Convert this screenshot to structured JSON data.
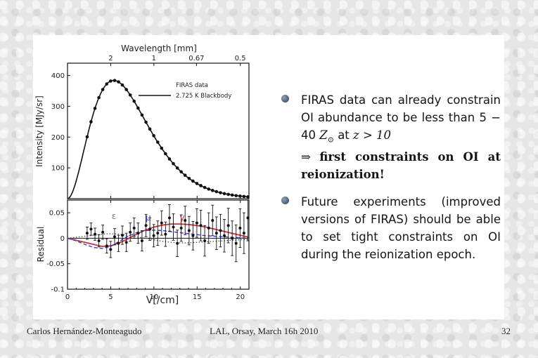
{
  "footer": {
    "author": "Carlos Hernández-Monteagudo",
    "venue": "LAL, Orsay, March 16h 2010",
    "page": "32"
  },
  "bullets": [
    {
      "id": "firas-constraint",
      "line1": "FIRAS data can already constrain OI abundance to be less than 5 − 40",
      "z_sym": "Z",
      "z_sub": "⊙",
      "at": "at",
      "cond": "z > 10",
      "arrow": "⇒",
      "bold": "first constraints on OI at reionization!"
    },
    {
      "id": "future-experiments",
      "text": "Future experiments (improved versions of FIRAS) should be able to set tight constraints on OI during the reionization epoch."
    }
  ],
  "chart_data": [
    {
      "type": "scatter",
      "panel": "top",
      "xlabel": "V[/cm]",
      "ylabel": "Intensity [MJy/sr]",
      "top_axis_label": "Wavelength [mm]",
      "top_axis_ticks": [
        {
          "label": "2",
          "nu": 5.0
        },
        {
          "label": "1",
          "nu": 10.0
        },
        {
          "label": "0.67",
          "nu": 14.93
        },
        {
          "label": "0.5",
          "nu": 20.0
        }
      ],
      "xlim": [
        0,
        21
      ],
      "ylim": [
        0,
        440
      ],
      "x_ticks": [
        "0",
        "5",
        "10",
        "15",
        "20"
      ],
      "y_ticks": [
        "100",
        "200",
        "300",
        "400"
      ],
      "legend": {
        "position": "top-right",
        "entries": [
          "FIRAS data",
          "2.725 K Blackbody"
        ]
      },
      "series": [
        {
          "name": "2.725 K Blackbody",
          "style": "line",
          "temperature_K": 2.725,
          "peak_value": 384
        },
        {
          "name": "FIRAS data",
          "style": "points",
          "x": [
            2.27,
            2.72,
            3.18,
            3.63,
            4.08,
            4.54,
            4.99,
            5.45,
            5.9,
            6.35,
            6.81,
            7.26,
            7.71,
            8.17,
            8.62,
            9.08,
            9.53,
            9.98,
            10.44,
            10.89,
            11.34,
            11.8,
            12.25,
            12.71,
            13.16,
            13.61,
            14.07,
            14.52,
            14.97,
            15.43,
            15.88,
            16.34,
            16.79,
            17.24,
            17.7,
            18.15,
            18.61,
            19.06,
            19.51,
            19.97,
            20.42,
            20.87
          ],
          "note": "points lie on the blackbody curve"
        }
      ]
    },
    {
      "type": "scatter",
      "panel": "bottom",
      "xlabel": "V[/cm]",
      "ylabel": "Residual",
      "xlim": [
        0,
        21
      ],
      "ylim": [
        -0.1,
        0.075
      ],
      "x_ticks": [
        "0",
        "5",
        "10",
        "15",
        "20"
      ],
      "y_ticks": [
        "-0.1",
        "-0.05",
        "0",
        "0.05"
      ],
      "annotations": [
        {
          "label": "ε",
          "color": "#7a7a7a"
        },
        {
          "label": "μ",
          "color": "#3a3ad0"
        },
        {
          "label": "y",
          "color": "#d23232"
        }
      ],
      "residuals": {
        "x": [
          2.27,
          2.72,
          3.18,
          3.63,
          4.08,
          4.54,
          4.99,
          5.45,
          5.9,
          6.35,
          6.81,
          7.26,
          7.71,
          8.17,
          8.62,
          9.08,
          9.53,
          9.98,
          10.44,
          10.89,
          11.34,
          11.8,
          12.25,
          12.71,
          13.16,
          13.61,
          14.07,
          14.52,
          14.97,
          15.43,
          15.88,
          16.34,
          16.79,
          17.24,
          17.7,
          18.15,
          18.61,
          19.06,
          19.51,
          19.97,
          20.42,
          20.87
        ],
        "y": [
          0.01,
          0.018,
          0.008,
          -0.005,
          0.012,
          -0.015,
          -0.022,
          0.003,
          -0.01,
          0.006,
          -0.008,
          0.012,
          0.02,
          0.01,
          -0.005,
          0.025,
          0.018,
          0.005,
          0.01,
          0.03,
          0.008,
          0.04,
          0.022,
          -0.01,
          0.02,
          0.035,
          0.015,
          0.005,
          0.03,
          0.025,
          -0.005,
          0.02,
          0.035,
          0.01,
          0.015,
          0.005,
          0.025,
          0.0,
          -0.01,
          0.02,
          0.01,
          0.04
        ],
        "err": [
          0.012,
          0.012,
          0.012,
          0.012,
          0.014,
          0.014,
          0.016,
          0.016,
          0.016,
          0.018,
          0.018,
          0.018,
          0.02,
          0.02,
          0.02,
          0.022,
          0.022,
          0.022,
          0.024,
          0.024,
          0.024,
          0.026,
          0.026,
          0.026,
          0.026,
          0.028,
          0.028,
          0.028,
          0.028,
          0.03,
          0.03,
          0.03,
          0.03,
          0.032,
          0.032,
          0.032,
          0.034,
          0.034,
          0.036,
          0.038,
          0.04,
          0.045
        ]
      },
      "models": [
        {
          "name": "y",
          "color": "#d23232",
          "dash": "solid",
          "x": [
            0,
            1.5,
            3,
            4,
            5,
            6,
            7,
            8,
            9,
            10,
            11,
            12,
            13,
            14,
            15,
            16,
            17,
            18,
            19,
            20,
            21
          ],
          "y": [
            0,
            -0.006,
            -0.012,
            -0.016,
            -0.015,
            -0.009,
            -0.001,
            0.008,
            0.016,
            0.022,
            0.026,
            0.028,
            0.028,
            0.027,
            0.025,
            0.022,
            0.018,
            0.014,
            0.01,
            0.006,
            0.002
          ]
        },
        {
          "name": "μ",
          "color": "#3a3ad0",
          "dash": "dashed",
          "x": [
            0,
            1,
            2,
            3,
            4,
            5,
            6,
            7,
            8,
            9,
            10,
            11,
            12,
            13,
            14,
            15,
            16,
            17,
            18,
            19,
            20,
            21
          ],
          "y": [
            0,
            -0.005,
            -0.012,
            -0.018,
            -0.02,
            -0.016,
            -0.006,
            0.004,
            0.011,
            0.015,
            0.016,
            0.015,
            0.013,
            0.011,
            0.009,
            0.007,
            0.005,
            0.004,
            0.003,
            0.002,
            0.001,
            0.0
          ]
        },
        {
          "name": "ε",
          "color": "#555555",
          "dash": "dotted",
          "x": [
            0,
            1,
            2,
            3,
            4,
            5,
            6,
            7,
            8,
            9,
            10,
            11,
            12,
            13,
            14,
            15,
            16,
            17,
            18,
            19,
            20,
            21
          ],
          "y": [
            0,
            0.002,
            0.004,
            0.006,
            0.008,
            0.009,
            0.008,
            0.006,
            0.003,
            0.0,
            -0.003,
            -0.006,
            -0.008,
            -0.009,
            -0.009,
            -0.008,
            -0.007,
            -0.006,
            -0.005,
            -0.004,
            -0.003,
            -0.002
          ]
        }
      ]
    }
  ]
}
